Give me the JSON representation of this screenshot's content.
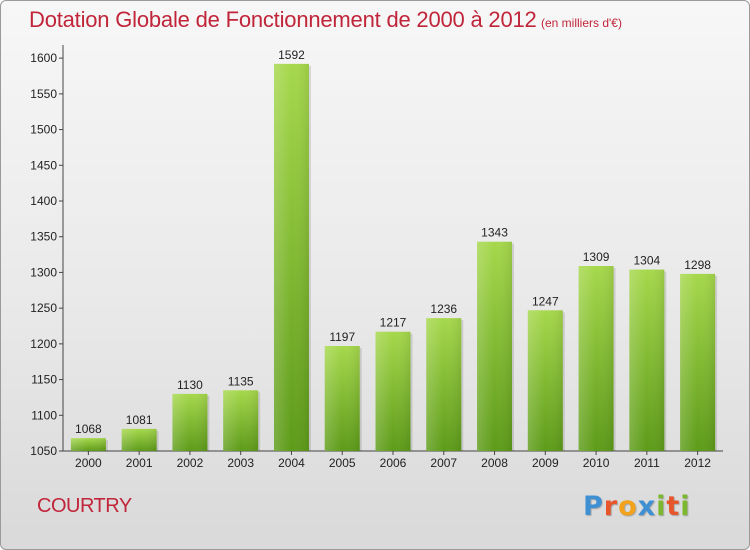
{
  "title": "Dotation Globale de Fonctionnement de 2000 à 2012",
  "subtitle": "(en milliers d'€)",
  "commune": "COURTRY",
  "logo": {
    "text": "Proxiti"
  },
  "colors": {
    "title": "#c0253a",
    "bar_light": "#a4d64a",
    "bar_dark": "#5e9c1a"
  },
  "chart_data": {
    "type": "bar",
    "title": "Dotation Globale de Fonctionnement de 2000 à 2012",
    "subtitle": "(en milliers d'€)",
    "categories": [
      "2000",
      "2001",
      "2002",
      "2003",
      "2004",
      "2005",
      "2006",
      "2007",
      "2008",
      "2009",
      "2010",
      "2011",
      "2012"
    ],
    "values": [
      1068,
      1081,
      1130,
      1135,
      1592,
      1197,
      1217,
      1236,
      1343,
      1247,
      1309,
      1304,
      1298
    ],
    "ylim": [
      1050,
      1600
    ],
    "yticks": [
      1050,
      1100,
      1150,
      1200,
      1250,
      1300,
      1350,
      1400,
      1450,
      1500,
      1550,
      1600
    ],
    "xlabel": "",
    "ylabel": "",
    "grid": false,
    "data_labels": true
  }
}
